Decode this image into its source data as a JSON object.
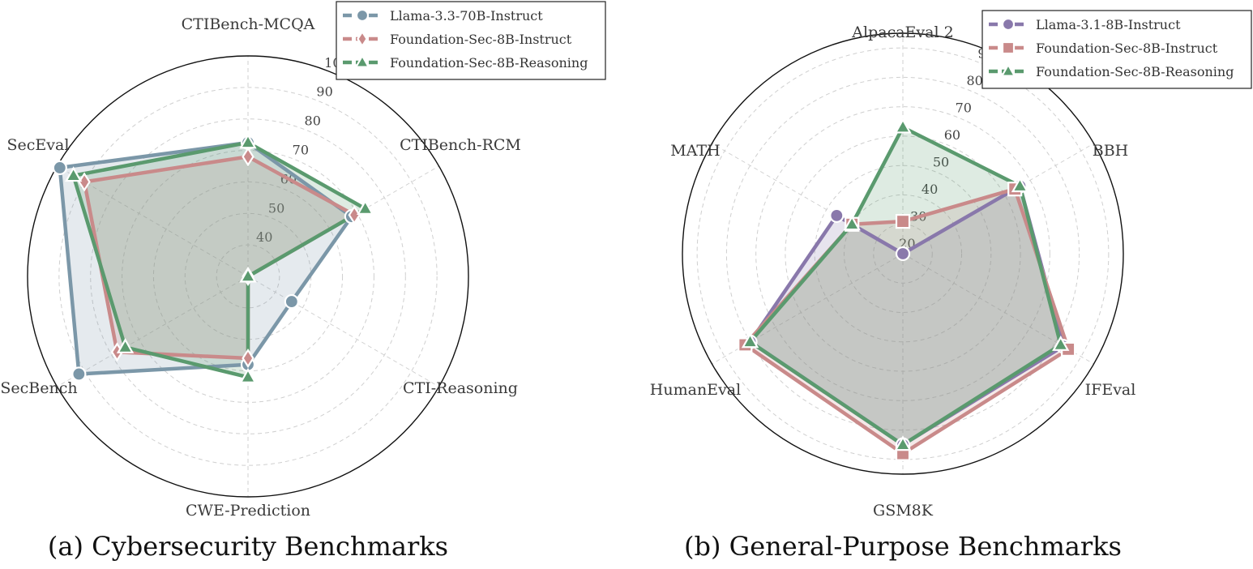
{
  "chart_data": [
    {
      "type": "radar",
      "caption": "(a) Cybersecurity Benchmarks",
      "axes": [
        "CTIBench-MCQA",
        "CTIBench-RCM",
        "CTI-Reasoning",
        "CWE-Prediction",
        "SecBench",
        "SecEval"
      ],
      "radial_range": [
        30,
        100
      ],
      "ticks": [
        40,
        50,
        60,
        70,
        80,
        90,
        100
      ],
      "legend_position": "top-right",
      "series": [
        {
          "name": "Llama-3.3-70B-Instruct",
          "marker": "circle",
          "color": "#7b97a8",
          "values": [
            72.5,
            68,
            46,
            58,
            92,
            99
          ]
        },
        {
          "name": "Foundation-Sec-8B-Instruct",
          "marker": "diamond",
          "color": "#c98a8a",
          "values": [
            68,
            69,
            30,
            56,
            78,
            90
          ]
        },
        {
          "name": "Foundation-Sec-8B-Reasoning",
          "marker": "triangle",
          "color": "#5a9a6e",
          "values": [
            72.5,
            73,
            30,
            62,
            75,
            94
          ]
        }
      ]
    },
    {
      "type": "radar",
      "caption": "(b) General-Purpose Benchmarks",
      "axes": [
        "AlpacaEval 2",
        "BBH",
        "IFEval",
        "GSM8K",
        "HumanEval",
        "MATH"
      ],
      "radial_range": [
        20,
        95
      ],
      "ticks": [
        20,
        30,
        40,
        50,
        60,
        70,
        80,
        90
      ],
      "legend_position": "top-right",
      "series": [
        {
          "name": "Llama-3.1-8B-Instruct",
          "marker": "circle",
          "color": "#8978ab",
          "values": [
            20,
            66,
            83,
            85,
            80,
            46
          ]
        },
        {
          "name": "Foundation-Sec-8B-Instruct",
          "marker": "square",
          "color": "#c98a8a",
          "values": [
            31,
            64,
            85,
            88,
            82,
            40
          ]
        },
        {
          "name": "Foundation-Sec-8B-Reasoning",
          "marker": "triangle",
          "color": "#5a9a6e",
          "values": [
            63,
            66,
            82,
            85,
            80,
            40
          ]
        }
      ]
    }
  ]
}
